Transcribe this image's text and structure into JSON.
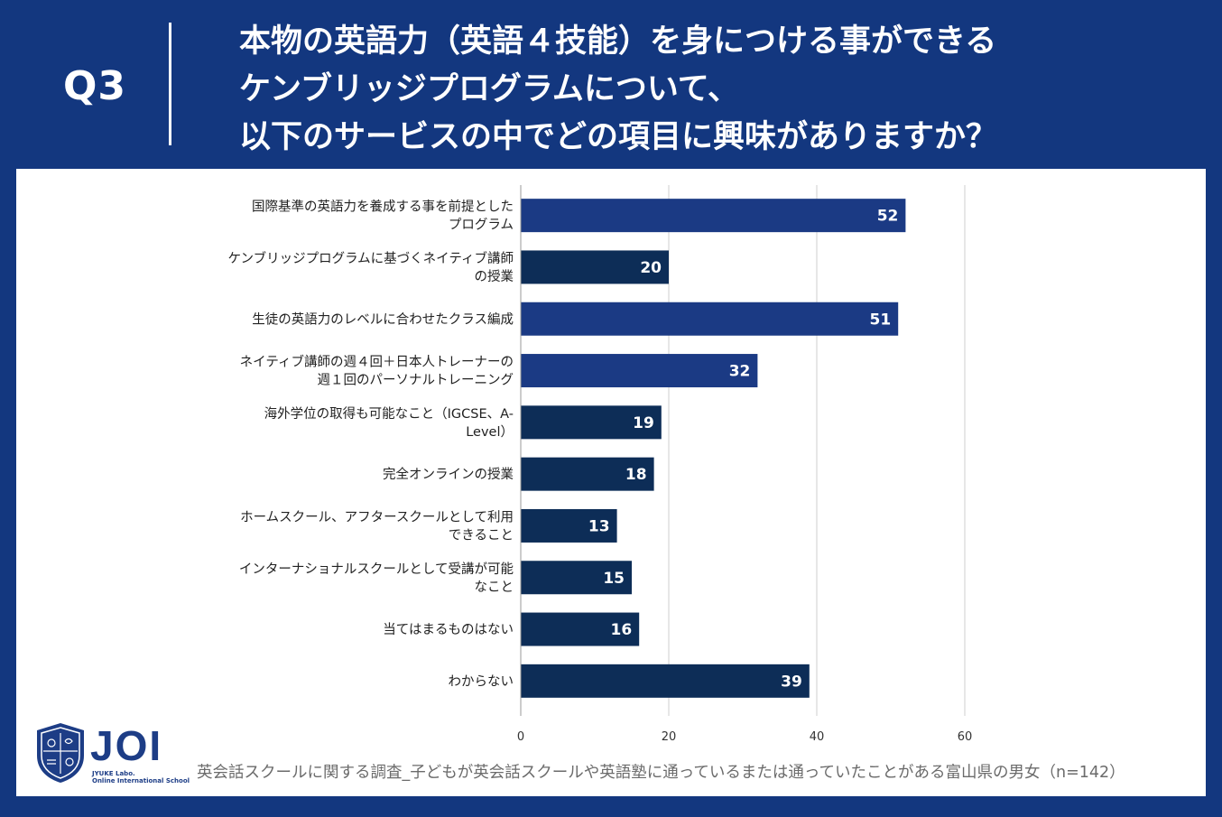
{
  "header": {
    "question_label": "Q3",
    "title_lines": [
      "本物の英語力（英語４技能）を身につける事ができる",
      "ケンブリッジプログラムについて、",
      "以下のサービスの中でどの項目に興味がありますか？"
    ]
  },
  "chart_data": {
    "type": "bar",
    "orientation": "horizontal",
    "categories": [
      [
        "国際基準の英語力を養成する事を前提とした",
        "プログラム"
      ],
      [
        "ケンブリッジプログラムに基づくネイティブ講師",
        "の授業"
      ],
      [
        "生徒の英語力のレベルに合わせたクラス編成"
      ],
      [
        "ネイティブ講師の週４回＋日本人トレーナーの",
        "週１回のパーソナルトレーニング"
      ],
      [
        "海外学位の取得も可能なこと（IGCSE、A-",
        "Level）"
      ],
      [
        "完全オンラインの授業"
      ],
      [
        "ホームスクール、アフタースクールとして利用",
        "できること"
      ],
      [
        "インターナショナルスクールとして受講が可能",
        "なこと"
      ],
      [
        "当てはまるものはない"
      ],
      [
        "わからない"
      ]
    ],
    "values": [
      52,
      20,
      51,
      32,
      19,
      18,
      13,
      15,
      16,
      39
    ],
    "xlim": [
      0,
      60
    ],
    "xticks": [
      0,
      20,
      40,
      60
    ],
    "tick_labels": [
      "0",
      "20",
      "40",
      "60"
    ],
    "grid": true,
    "colors": [
      "#1b3a84",
      "#0d2d57",
      "#1b3a84",
      "#1b3a84",
      "#0d2d57",
      "#0d2d57",
      "#0d2d57",
      "#0d2d57",
      "#0d2d57",
      "#0d2d57"
    ]
  },
  "logo": {
    "name": "JOI",
    "sub1": "JYUKE Labo.",
    "sub2": "Online International School"
  },
  "footnote": "英会話スクールに関する調査_子どもが英会話スクールや英語塾に通っているまたは通っていたことがある富山県の男女（n=142）"
}
